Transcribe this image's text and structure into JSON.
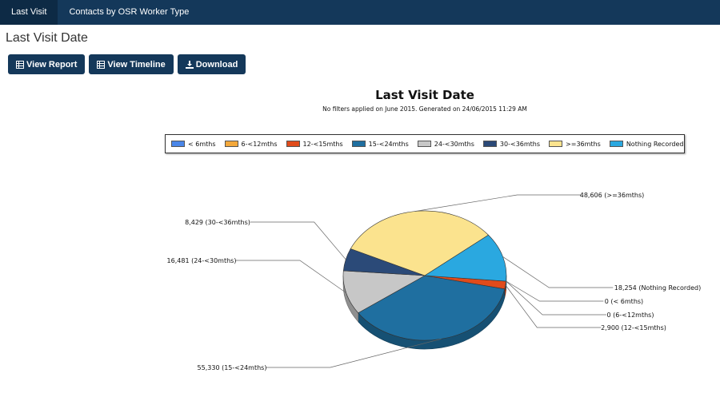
{
  "nav": {
    "tabs": [
      {
        "label": "Last Visit"
      },
      {
        "label": "Contacts by OSR Worker Type"
      }
    ]
  },
  "page": {
    "title": "Last Visit Date"
  },
  "toolbar": {
    "view_report": "View Report",
    "view_timeline": "View Timeline",
    "download": "Download"
  },
  "chart_data": {
    "type": "pie",
    "title": "Last Visit Date",
    "subtitle": "No filters applied on June 2015. Generated on 24/06/2015 11:29 AM",
    "legend_position": "top",
    "series": [
      {
        "name": "< 6mths",
        "value": 0,
        "label": "0 (< 6mths)",
        "color": "#4a86e8"
      },
      {
        "name": "6-<12mths",
        "value": 0,
        "label": "0 (6-<12mths)",
        "color": "#f3a83b"
      },
      {
        "name": "12-<15mths",
        "value": 2900,
        "label": "2,900 (12-<15mths)",
        "color": "#e04b1b"
      },
      {
        "name": "15-<24mths",
        "value": 55330,
        "label": "55,330 (15-<24mths)",
        "color": "#1f6fa0"
      },
      {
        "name": "24-<30mths",
        "value": 16481,
        "label": "16,481 (24-<30mths)",
        "color": "#c7c7c7"
      },
      {
        "name": "30-<36mths",
        "value": 8429,
        "label": "8,429 (30-<36mths)",
        "color": "#2b4a78"
      },
      {
        "name": ">=36mths",
        "value": 48606,
        "label": "48,606 (>=36mths)",
        "color": "#fbe38e"
      },
      {
        "name": "Nothing Recorded",
        "value": 18254,
        "label": "18,254 (Nothing Recorded)",
        "color": "#2aa8e0"
      }
    ]
  }
}
